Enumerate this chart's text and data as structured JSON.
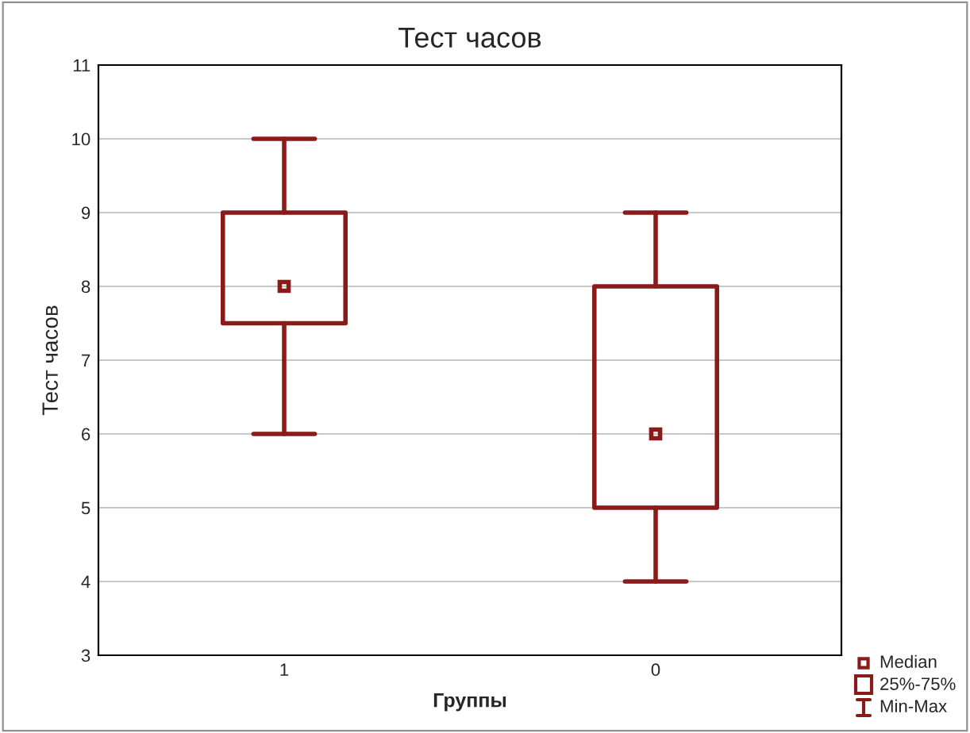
{
  "chart_data": {
    "type": "box",
    "title": "Тест часов",
    "xlabel": "Группы",
    "ylabel": "Тест часов",
    "categories": [
      "1",
      "0"
    ],
    "boxes": [
      {
        "low": 6,
        "q1": 7.5,
        "median": 8,
        "q3": 9,
        "high": 10
      },
      {
        "low": 4,
        "q1": 5,
        "median": 6,
        "q3": 8,
        "high": 9
      }
    ],
    "color": "#8b1a1a",
    "ylim": [
      3,
      11
    ],
    "yticks": [
      3,
      4,
      5,
      6,
      7,
      8,
      9,
      10,
      11
    ],
    "grid": "y",
    "annotations": [
      "Median",
      "25%-75%",
      "Min-Max"
    ]
  }
}
